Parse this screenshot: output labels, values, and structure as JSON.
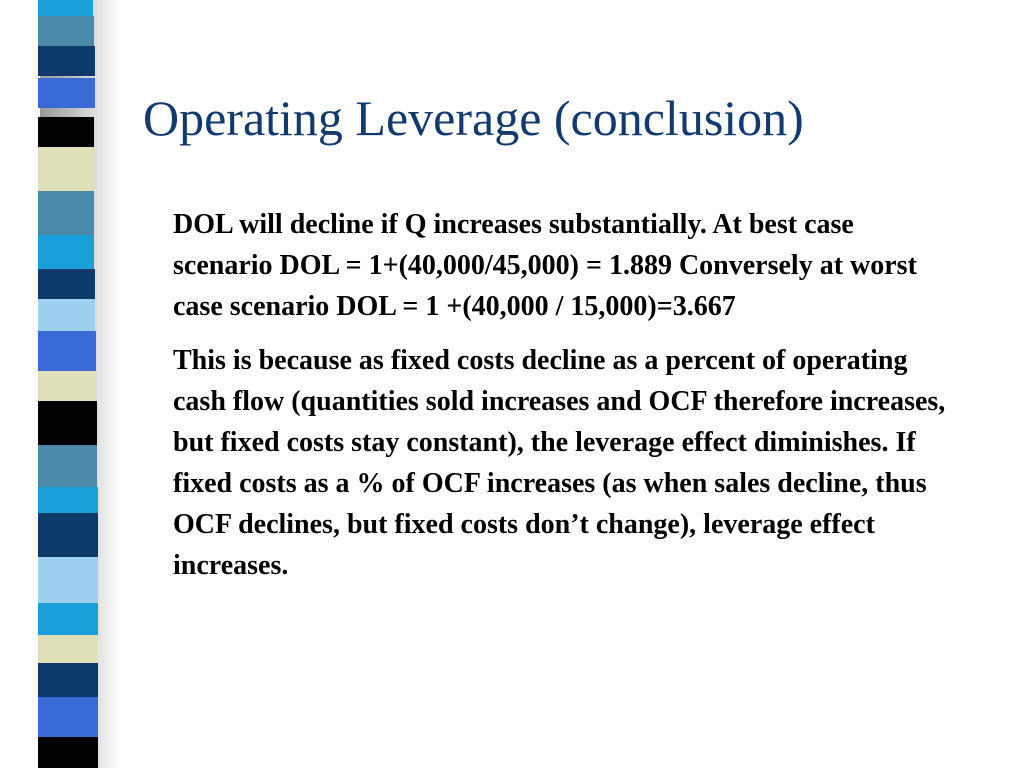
{
  "slide": {
    "title": "Operating Leverage (conclusion)",
    "paragraphs": [
      "DOL will decline if Q increases substantially.  At best case scenario DOL = 1+(40,000/45,000) = 1.889 Conversely at worst case scenario DOL = 1 +(40,000 / 15,000)=3.667",
      "This is because as fixed costs decline as a percent of operating cash flow (quantities sold increases and OCF therefore increases, but fixed costs stay constant), the leverage effect diminishes.  If fixed costs as a % of OCF increases (as when sales decline, thus OCF declines, but fixed costs don’t change), leverage effect increases."
    ]
  },
  "colors": {
    "title": "#123a6e",
    "body_text": "#000000",
    "background": "#ffffff",
    "strip_palette": [
      "#4a8aa8",
      "#0e3a6b",
      "#3a6ad6",
      "#000000",
      "#e0e0b8",
      "#1aa0d8",
      "#9ed0f0"
    ]
  }
}
